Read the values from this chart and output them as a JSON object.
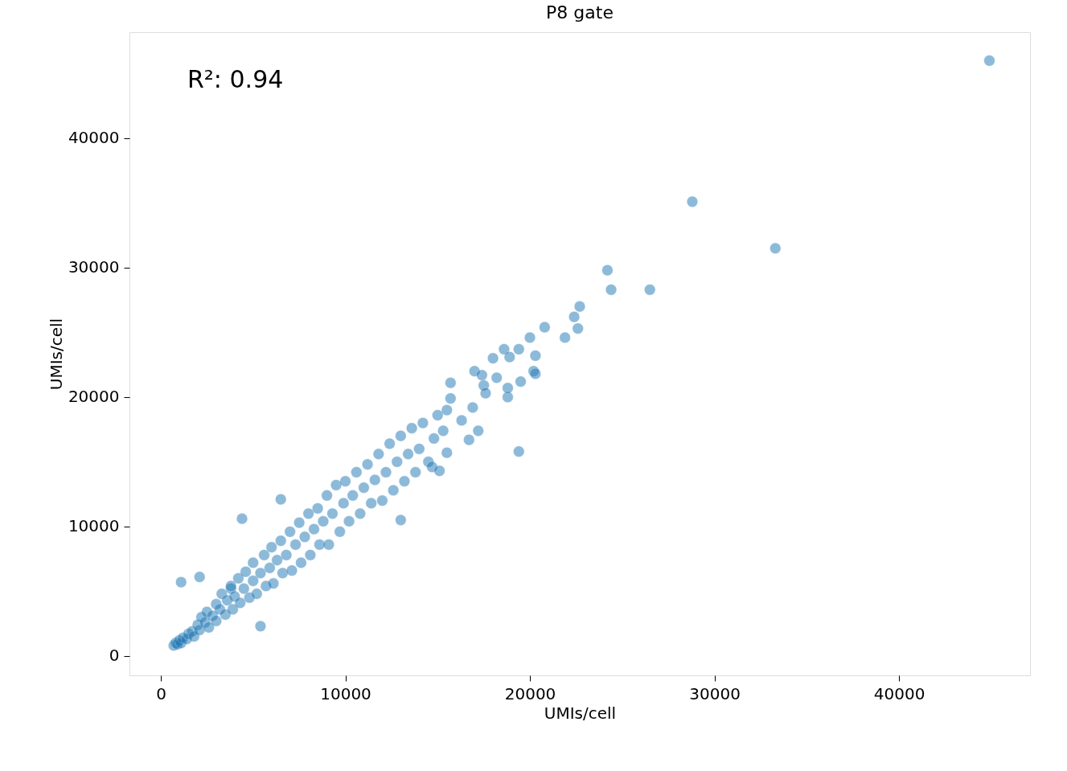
{
  "chart_data": {
    "type": "scatter",
    "title": "P8 gate",
    "xlabel": "UMIs/cell",
    "ylabel": "UMIs/cell",
    "annotations": [
      "R²: 0.94"
    ],
    "xlim": [
      -1700,
      47100
    ],
    "ylim": [
      -1500,
      48200
    ],
    "xticks": [
      0,
      10000,
      20000,
      30000,
      40000
    ],
    "yticks": [
      0,
      10000,
      20000,
      30000,
      40000
    ],
    "grid": false,
    "marker": "circle",
    "series": [
      {
        "color": "#1f77b4",
        "x": [
          700,
          800,
          900,
          1000,
          1100,
          1200,
          1400,
          1500,
          1700,
          1800,
          2000,
          2100,
          2200,
          2400,
          2500,
          2600,
          2800,
          3000,
          3000,
          3200,
          3300,
          3500,
          3600,
          3800,
          3900,
          4000,
          4200,
          4300,
          4500,
          4600,
          4800,
          5000,
          5000,
          5200,
          5400,
          5600,
          5700,
          5900,
          6000,
          6100,
          6300,
          6500,
          6600,
          6800,
          7000,
          7100,
          7300,
          7500,
          7600,
          7800,
          8000,
          8100,
          8300,
          8500,
          8600,
          8800,
          9000,
          9100,
          9300,
          9500,
          9700,
          9900,
          10000,
          10200,
          10400,
          10600,
          10800,
          11000,
          11200,
          11400,
          11600,
          11800,
          12000,
          12200,
          12400,
          12600,
          12800,
          13000,
          13200,
          13400,
          13600,
          13800,
          14000,
          14200,
          14500,
          14800,
          15000,
          15300,
          15500,
          13000,
          3800,
          1100,
          4400,
          5400,
          6500,
          2100,
          14700,
          15100,
          15500,
          15700,
          15700,
          16300,
          16700,
          16900,
          17200,
          17000,
          17400,
          17500,
          17600,
          18000,
          18200,
          18600,
          18800,
          18800,
          18900,
          19400,
          19400,
          19500,
          20000,
          20200,
          20300,
          20300,
          20800,
          21900,
          22400,
          22600,
          22700,
          24200,
          24400,
          26500,
          28800,
          33300,
          44900
        ],
        "values": [
          800,
          1000,
          900,
          1200,
          1000,
          1400,
          1300,
          1700,
          1900,
          1500,
          2400,
          2000,
          3000,
          2600,
          3400,
          2200,
          3100,
          4000,
          2700,
          3600,
          4800,
          3200,
          4300,
          5200,
          3600,
          4600,
          6000,
          4100,
          5200,
          6500,
          4500,
          5800,
          7200,
          4800,
          6400,
          7800,
          5400,
          6800,
          8400,
          5600,
          7400,
          8900,
          6400,
          7800,
          9600,
          6600,
          8600,
          10300,
          7200,
          9200,
          11000,
          7800,
          9800,
          11400,
          8600,
          10400,
          12400,
          8600,
          11000,
          13200,
          9600,
          11800,
          13500,
          10400,
          12400,
          14200,
          11000,
          13000,
          14800,
          11800,
          13600,
          15600,
          12000,
          14200,
          16400,
          12800,
          15000,
          17000,
          13500,
          15600,
          17600,
          14200,
          16000,
          18000,
          15000,
          16800,
          18600,
          17400,
          19000,
          10500,
          5400,
          5700,
          10600,
          2300,
          12100,
          6100,
          14600,
          14300,
          15700,
          21100,
          19900,
          18200,
          16700,
          19200,
          17400,
          22000,
          21700,
          20900,
          20300,
          23000,
          21500,
          23700,
          20000,
          20700,
          23100,
          15800,
          23700,
          21200,
          24600,
          22000,
          23200,
          21800,
          25400,
          24600,
          26200,
          25300,
          27000,
          29800,
          28300,
          28300,
          35100,
          31500,
          46000
        ]
      }
    ]
  }
}
